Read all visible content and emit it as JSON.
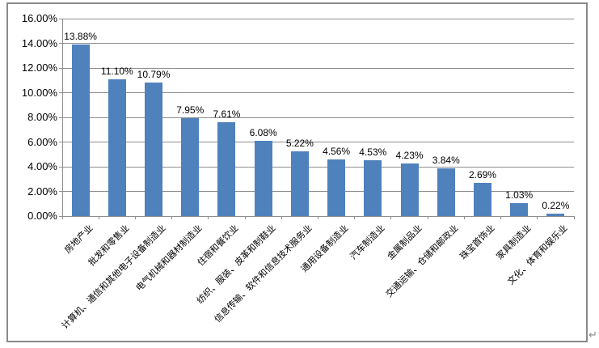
{
  "page": {
    "paragraph_mark": "↵"
  },
  "chart_data": {
    "type": "bar",
    "title": "",
    "xlabel": "",
    "ylabel": "",
    "grid": true,
    "legend": null,
    "categories": [
      "房地产业",
      "批发和零售业",
      "计算机、通信和其他电子设备制造业",
      "电气机械和器材制造业",
      "住宿和餐饮业",
      "纺织、服装、皮革和制鞋业",
      "信息传输、软件和信息技术服务业",
      "通用设备制造业",
      "汽车制造业",
      "金属制品业",
      "交通运输、仓储和邮政业",
      "珠宝首饰业",
      "家具制造业",
      "文化、体育和娱乐业"
    ],
    "values": [
      13.88,
      11.1,
      10.79,
      7.95,
      7.61,
      6.08,
      5.22,
      4.56,
      4.53,
      4.23,
      3.84,
      2.69,
      1.03,
      0.22
    ],
    "value_labels": [
      "13.88%",
      "11.10%",
      "10.79%",
      "7.95%",
      "7.61%",
      "6.08%",
      "5.22%",
      "4.56%",
      "4.53%",
      "4.23%",
      "3.84%",
      "2.69%",
      "1.03%",
      "0.22%"
    ],
    "ylim": [
      0,
      16
    ],
    "ytick_step": 2,
    "ytick_labels": [
      "0.00%",
      "2.00%",
      "4.00%",
      "6.00%",
      "8.00%",
      "10.00%",
      "12.00%",
      "14.00%",
      "16.00%"
    ],
    "colors": {
      "bar": "#4F81BD",
      "gridline": "#8e8e8e",
      "axis": "#8e8e8e",
      "frame_border": "#8a8a8a",
      "text": "#000000"
    }
  }
}
